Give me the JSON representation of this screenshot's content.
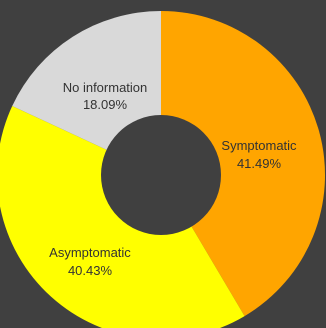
{
  "chart_data": {
    "type": "pie",
    "title": "",
    "categories": [
      "Symptomatic",
      "Asymptomatic",
      "No information"
    ],
    "values": [
      41.49,
      40.43,
      18.09
    ],
    "value_labels": [
      "41.49%",
      "40.43%",
      "18.09%"
    ],
    "colors": [
      "#FFA500",
      "#FFFF00",
      "#D9D9D9"
    ],
    "donut": true,
    "legend": "none"
  }
}
